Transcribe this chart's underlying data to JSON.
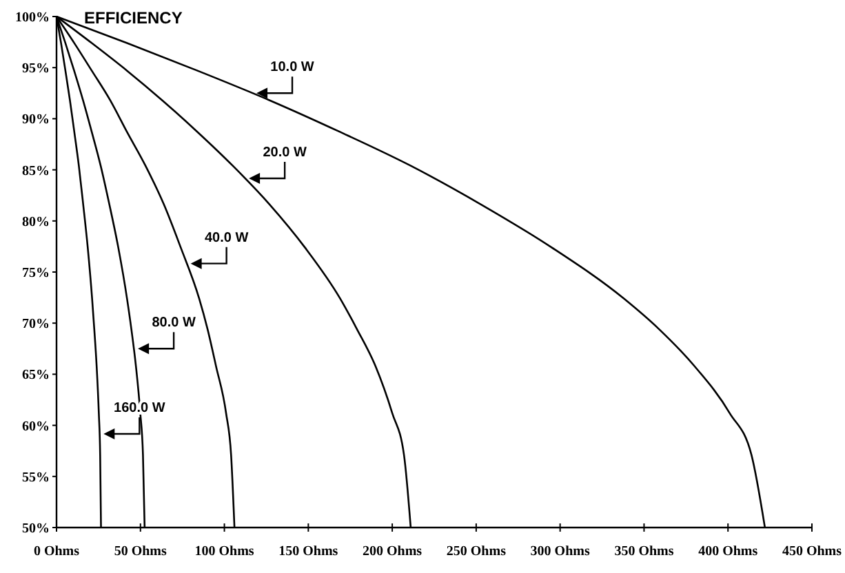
{
  "chart_data": {
    "type": "line",
    "title": "EFFICIENCY",
    "xlim": [
      0,
      450
    ],
    "ylim": [
      50,
      100
    ],
    "xticks": [
      {
        "value": 0,
        "label": "0 Ohms"
      },
      {
        "value": 50,
        "label": "50 Ohms"
      },
      {
        "value": 100,
        "label": "100 Ohms"
      },
      {
        "value": 150,
        "label": "150 Ohms"
      },
      {
        "value": 200,
        "label": "200 Ohms"
      },
      {
        "value": 250,
        "label": "250 Ohms"
      },
      {
        "value": 300,
        "label": "300 Ohms"
      },
      {
        "value": 350,
        "label": "350 Ohms"
      },
      {
        "value": 400,
        "label": "400 Ohms"
      },
      {
        "value": 450,
        "label": "450 Ohms"
      }
    ],
    "yticks": [
      {
        "value": 50,
        "label": "50%"
      },
      {
        "value": 55,
        "label": "55%"
      },
      {
        "value": 60,
        "label": "60%"
      },
      {
        "value": 65,
        "label": "65%"
      },
      {
        "value": 70,
        "label": "70%"
      },
      {
        "value": 75,
        "label": "75%"
      },
      {
        "value": 80,
        "label": "80%"
      },
      {
        "value": 85,
        "label": "85%"
      },
      {
        "value": 90,
        "label": "90%"
      },
      {
        "value": 95,
        "label": "95%"
      },
      {
        "value": 100,
        "label": "100%"
      }
    ],
    "grid": false,
    "legend": false,
    "marker": "none",
    "line_style": "solid",
    "series": [
      {
        "name": "10.0 W",
        "color": "#000000",
        "x": [
          0,
          42,
          84,
          127,
          169,
          211,
          253,
          295,
          338,
          359,
          380,
          401,
          414,
          422
        ],
        "values": [
          100,
          97.4,
          94.7,
          91.8,
          88.7,
          85.4,
          81.6,
          77.4,
          72.4,
          69.4,
          65.8,
          61.2,
          57.1,
          50
        ]
      },
      {
        "name": "20.0 W",
        "color": "#000000",
        "x": [
          0,
          21,
          42,
          63,
          84,
          105,
          127,
          148,
          169,
          179,
          190,
          200,
          207,
          211
        ],
        "values": [
          100,
          97.4,
          94.7,
          91.8,
          88.7,
          85.4,
          81.6,
          77.4,
          72.4,
          69.4,
          65.8,
          61.2,
          57.1,
          50
        ]
      },
      {
        "name": "40.0 W",
        "color": "#000000",
        "x": [
          0,
          10.6,
          21,
          32,
          42,
          53,
          64,
          74,
          85,
          90,
          95,
          101,
          104,
          106
        ],
        "values": [
          100,
          97.4,
          94.7,
          91.8,
          88.7,
          85.4,
          81.6,
          77.4,
          72.4,
          69.4,
          65.8,
          61.2,
          57.1,
          50
        ]
      },
      {
        "name": "80.0 W",
        "color": "#000000",
        "x": [
          0,
          5.3,
          10.5,
          15.8,
          21,
          26.3,
          31.5,
          36.8,
          42,
          44.6,
          47.3,
          49.9,
          51.5,
          52.5
        ],
        "values": [
          100,
          97.4,
          94.7,
          91.8,
          88.7,
          85.4,
          81.6,
          77.4,
          72.4,
          69.4,
          65.8,
          61.2,
          57.1,
          50
        ]
      },
      {
        "name": "160.0 W",
        "color": "#000000",
        "x": [
          0,
          2.7,
          5.3,
          8,
          10.6,
          13.3,
          15.9,
          18.6,
          21.2,
          22.5,
          23.9,
          25.2,
          26,
          26.5
        ],
        "values": [
          100,
          97.4,
          94.7,
          91.8,
          88.7,
          85.4,
          81.6,
          77.4,
          72.4,
          69.4,
          65.8,
          61.2,
          57.1,
          50
        ]
      }
    ]
  }
}
